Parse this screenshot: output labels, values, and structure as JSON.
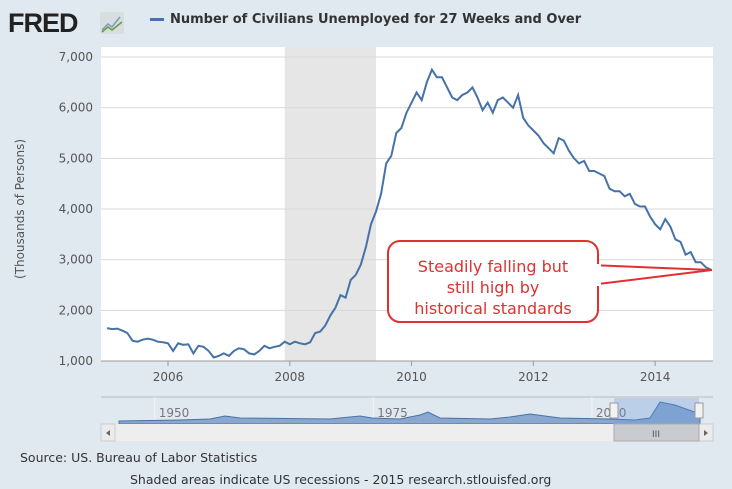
{
  "header": {
    "logo": "FRED",
    "title": "Number of Civilians Unemployed for 27 Weeks and Over"
  },
  "footer": {
    "source": "Source: US. Bureau of Labor Statistics",
    "note": "Shaded areas indicate US recessions - 2015 research.stlouisfed.org"
  },
  "navigator": {
    "labels": [
      "1950",
      "1975",
      "2000"
    ],
    "scroll_grip": "III"
  },
  "annotation": {
    "lines": [
      "Steadily falling but",
      "still high by",
      "historical standards"
    ],
    "color": "#e03030"
  },
  "chart_data": {
    "type": "line",
    "title": "Number of Civilians Unemployed for 27 Weeks and Over",
    "ylabel": "(Thousands of Persons)",
    "xlabel": "",
    "ylim": [
      1000,
      7000
    ],
    "xlim": [
      2004.9,
      2014.95
    ],
    "yticks": [
      1000,
      2000,
      3000,
      4000,
      5000,
      6000,
      7000
    ],
    "ytick_labels": [
      "1,000",
      "2,000",
      "3,000",
      "4,000",
      "5,000",
      "6,000",
      "7,000"
    ],
    "xticks": [
      2006,
      2008,
      2010,
      2012,
      2014
    ],
    "xtick_labels": [
      "2006",
      "2008",
      "2010",
      "2012",
      "2014"
    ],
    "recessions": [
      [
        2007.917,
        2009.417
      ]
    ],
    "series": [
      {
        "name": "Number of Civilians Unemployed for 27 Weeks and Over",
        "color": "#4572a7",
        "start": 2005.0,
        "freq": "monthly",
        "values": [
          1650,
          1630,
          1640,
          1600,
          1550,
          1400,
          1380,
          1420,
          1440,
          1420,
          1380,
          1370,
          1350,
          1200,
          1350,
          1320,
          1330,
          1150,
          1300,
          1280,
          1200,
          1070,
          1100,
          1150,
          1100,
          1200,
          1250,
          1230,
          1150,
          1130,
          1200,
          1300,
          1250,
          1280,
          1300,
          1380,
          1330,
          1380,
          1350,
          1330,
          1370,
          1550,
          1580,
          1700,
          1900,
          2050,
          2300,
          2250,
          2600,
          2700,
          2900,
          3250,
          3700,
          3950,
          4300,
          4900,
          5050,
          5500,
          5600,
          5900,
          6100,
          6300,
          6150,
          6500,
          6750,
          6600,
          6600,
          6400,
          6200,
          6150,
          6250,
          6300,
          6400,
          6200,
          5950,
          6100,
          5900,
          6150,
          6200,
          6100,
          6000,
          6250,
          5800,
          5650,
          5550,
          5450,
          5300,
          5200,
          5100,
          5400,
          5350,
          5150,
          5000,
          4900,
          4950,
          4750,
          4750,
          4700,
          4650,
          4400,
          4350,
          4350,
          4250,
          4300,
          4100,
          4050,
          4050,
          3850,
          3700,
          3600,
          3800,
          3650,
          3400,
          3350,
          3100,
          3150,
          2950,
          2950,
          2850,
          2800
        ]
      }
    ]
  }
}
